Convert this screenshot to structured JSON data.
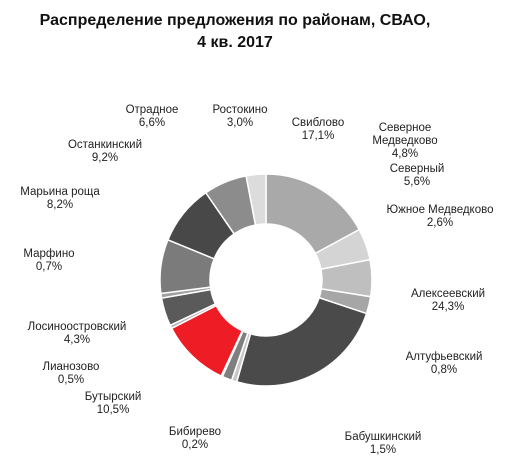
{
  "chart_data": {
    "type": "pie",
    "variant": "donut",
    "title_lines": [
      "Распределение предложения по районам, СВАО,",
      "4 кв. 2017"
    ],
    "legend": "none",
    "slices": [
      {
        "name": "Свиблово",
        "value": 17.1,
        "label": "17,1%",
        "color": "#a9a9a9"
      },
      {
        "name": "Северное Медведково",
        "value": 4.8,
        "label": "4,8%",
        "color": "#d4d4d4"
      },
      {
        "name": "Северный",
        "value": 5.6,
        "label": "5,6%",
        "color": "#bfbfbf"
      },
      {
        "name": "Южное Медведково",
        "value": 2.6,
        "label": "2,6%",
        "color": "#a6a6a6"
      },
      {
        "name": "Алексеевский",
        "value": 24.3,
        "label": "24,3%",
        "color": "#4a4a4a"
      },
      {
        "name": "Алтуфьевский",
        "value": 0.8,
        "label": "0,8%",
        "color": "#c8c8c8"
      },
      {
        "name": "Бабушкинский",
        "value": 1.5,
        "label": "1,5%",
        "color": "#7f7f7f"
      },
      {
        "name": "Бибирево",
        "value": 0.2,
        "label": "0,2%",
        "color": "#bdbdbd"
      },
      {
        "name": "Бутырский",
        "value": 10.5,
        "label": "10,5%",
        "color": "#ee1c25"
      },
      {
        "name": "Лианозово",
        "value": 0.5,
        "label": "0,5%",
        "color": "#b0b0b0"
      },
      {
        "name": "Лосиноостровский",
        "value": 4.3,
        "label": "4,3%",
        "color": "#5a5a5a"
      },
      {
        "name": "Марфино",
        "value": 0.7,
        "label": "0,7%",
        "color": "#a0a0a0"
      },
      {
        "name": "Марьина роща",
        "value": 8.2,
        "label": "8,2%",
        "color": "#7b7b7b"
      },
      {
        "name": "Останкинский",
        "value": 9.2,
        "label": "9,2%",
        "color": "#484848"
      },
      {
        "name": "Отрадное",
        "value": 6.6,
        "label": "6,6%",
        "color": "#8c8c8c"
      },
      {
        "name": "Ростокино",
        "value": 3.0,
        "label": "3,0%",
        "color": "#dcdcdc"
      }
    ]
  }
}
